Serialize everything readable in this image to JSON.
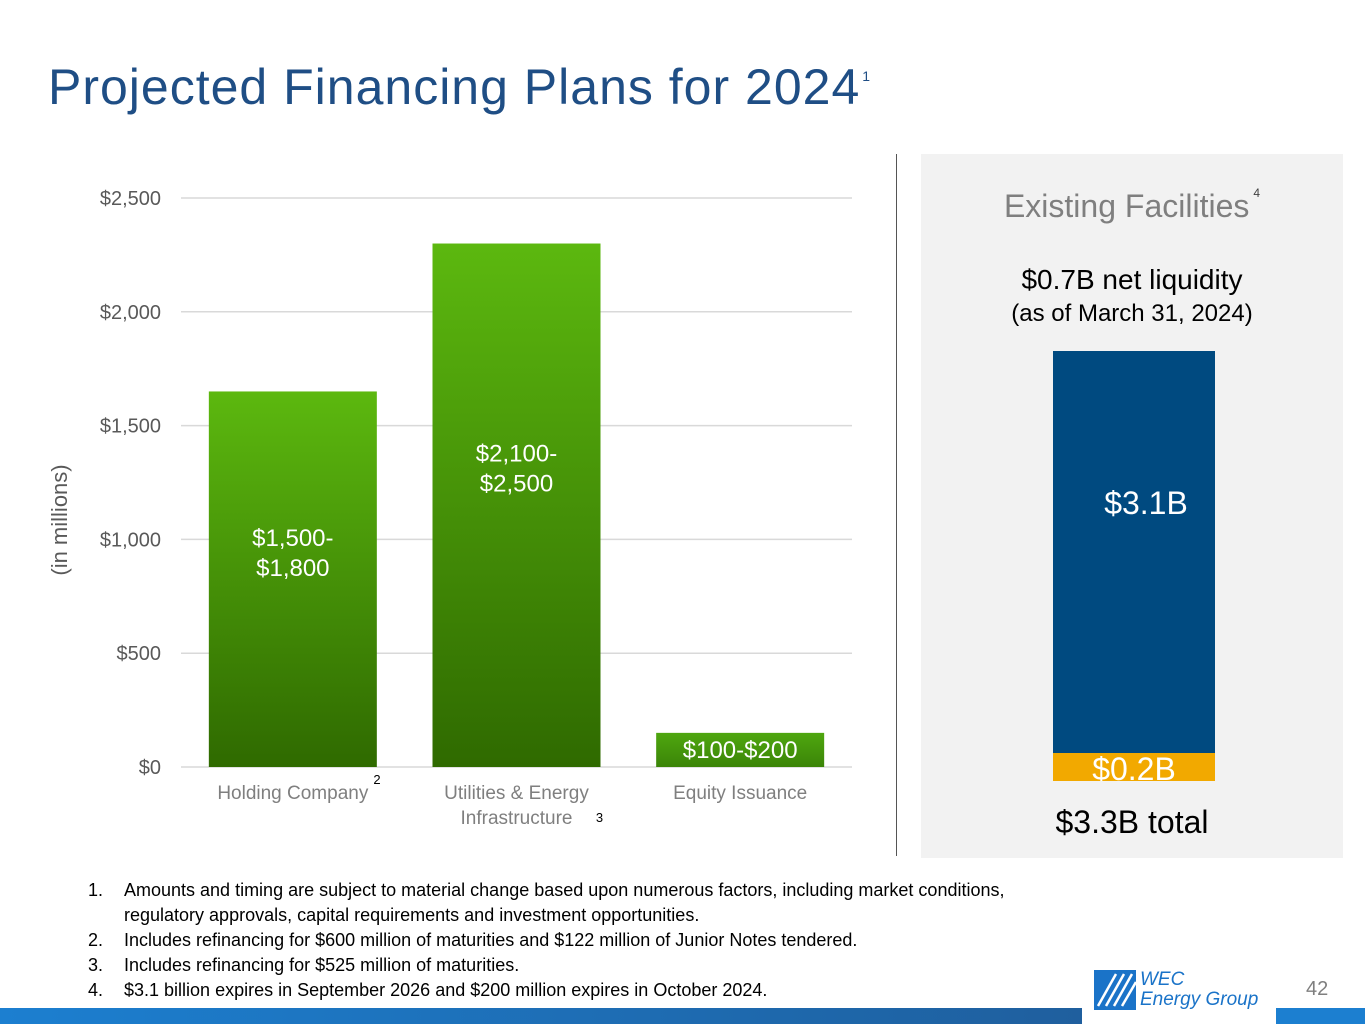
{
  "title": {
    "text": "Projected Financing Plans for 2024",
    "footnote_marker": "1"
  },
  "chart_data": {
    "type": "bar",
    "ylabel": "(in millions)",
    "ylim": [
      0,
      2500
    ],
    "yticks": [
      0,
      500,
      1000,
      1500,
      2000,
      2500
    ],
    "ytick_labels": [
      "$0",
      "$500",
      "$1,000",
      "$1,500",
      "$2,000",
      "$2,500"
    ],
    "grid": true,
    "categories": [
      {
        "lines": [
          "Holding Company"
        ],
        "marker": "2"
      },
      {
        "lines": [
          "Utilities & Energy",
          "Infrastructure"
        ],
        "marker": "3"
      },
      {
        "lines": [
          "Equity Issuance"
        ],
        "marker": ""
      }
    ],
    "values": [
      1650,
      2300,
      150
    ],
    "data_labels": [
      [
        "$1,500-",
        "$1,800"
      ],
      [
        "$2,100-",
        "$2,500"
      ],
      [
        "$100-$200"
      ]
    ],
    "colors": {
      "bar_top": "#5cb80f",
      "bar_bottom": "#2f6a00",
      "equity_top": "#4fa70f",
      "equity_bottom": "#3b8508",
      "grid": "#d9d9d9",
      "tick": "#595959"
    }
  },
  "facilities": {
    "title": "Existing Facilities",
    "footnote_marker": "4",
    "net_liquidity": "$0.7B net liquidity",
    "as_of": "(as of March 31, 2024)",
    "segments": [
      {
        "label": "$3.1B",
        "value": 3.1,
        "color": "#004a80"
      },
      {
        "label": "$0.2B",
        "value": 0.2,
        "color": "#f2a900"
      }
    ],
    "total": "$3.3B total"
  },
  "footnotes": [
    {
      "num": "1.",
      "text": "Amounts and timing are subject to material change based upon numerous factors, including market conditions, regulatory approvals, capital requirements and investment opportunities."
    },
    {
      "num": "2.",
      "text": "Includes refinancing for $600 million of maturities and $122 million of Junior Notes tendered."
    },
    {
      "num": "3.",
      "text": "Includes refinancing for $525 million of maturities."
    },
    {
      "num": "4.",
      "text": "$3.1 billion expires in September 2026 and $200 million expires in October 2024."
    }
  ],
  "logo": {
    "line1": "WEC",
    "line2": "Energy Group"
  },
  "page_number": "42"
}
